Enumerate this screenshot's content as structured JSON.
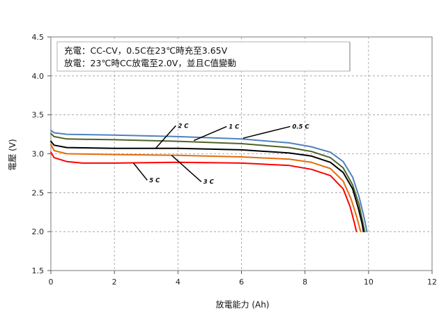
{
  "chart_data": {
    "type": "line",
    "xlabel": "放電能力 (Ah)",
    "ylabel": "電壓 (V)",
    "xlim": [
      0,
      12
    ],
    "ylim": [
      1.5,
      4.5
    ],
    "x_ticks": [
      "0",
      "2",
      "4",
      "6",
      "8",
      "10",
      "12"
    ],
    "y_ticks": [
      "1.5",
      "2.0",
      "2.5",
      "3.0",
      "3.5",
      "4.0",
      "4.5"
    ],
    "grid": true,
    "annotation": {
      "line1": "充電：CC-CV，0.5C在23℃時充至3.65V",
      "line2": "放電：23℃時CC放電至2.0V，並且C值變動"
    },
    "series": [
      {
        "name": "0.5 C",
        "color": "#4f81bd",
        "points": [
          [
            0,
            3.3
          ],
          [
            0.1,
            3.27
          ],
          [
            0.5,
            3.25
          ],
          [
            2,
            3.24
          ],
          [
            4,
            3.22
          ],
          [
            6,
            3.19
          ],
          [
            7.5,
            3.14
          ],
          [
            8.2,
            3.09
          ],
          [
            8.8,
            3.02
          ],
          [
            9.2,
            2.9
          ],
          [
            9.5,
            2.7
          ],
          [
            9.7,
            2.45
          ],
          [
            9.85,
            2.2
          ],
          [
            9.95,
            2.0
          ]
        ]
      },
      {
        "name": "1 C",
        "color": "#4f6228",
        "points": [
          [
            0,
            3.26
          ],
          [
            0.1,
            3.22
          ],
          [
            0.5,
            3.19
          ],
          [
            2,
            3.18
          ],
          [
            4,
            3.16
          ],
          [
            6,
            3.13
          ],
          [
            7.5,
            3.08
          ],
          [
            8.2,
            3.03
          ],
          [
            8.8,
            2.95
          ],
          [
            9.2,
            2.82
          ],
          [
            9.5,
            2.6
          ],
          [
            9.7,
            2.35
          ],
          [
            9.82,
            2.12
          ],
          [
            9.88,
            2.0
          ]
        ]
      },
      {
        "name": "2 C",
        "color": "#000000",
        "points": [
          [
            0,
            3.16
          ],
          [
            0.1,
            3.11
          ],
          [
            0.5,
            3.08
          ],
          [
            2,
            3.07
          ],
          [
            4,
            3.07
          ],
          [
            6,
            3.05
          ],
          [
            7.5,
            3.01
          ],
          [
            8.2,
            2.97
          ],
          [
            8.8,
            2.89
          ],
          [
            9.2,
            2.76
          ],
          [
            9.5,
            2.55
          ],
          [
            9.68,
            2.3
          ],
          [
            9.8,
            2.1
          ],
          [
            9.84,
            2.0
          ]
        ]
      },
      {
        "name": "3 C",
        "color": "#e46c0a",
        "points": [
          [
            0,
            3.12
          ],
          [
            0.1,
            3.04
          ],
          [
            0.5,
            3.0
          ],
          [
            2,
            2.99
          ],
          [
            4,
            2.98
          ],
          [
            6,
            2.96
          ],
          [
            7.5,
            2.93
          ],
          [
            8.2,
            2.89
          ],
          [
            8.8,
            2.81
          ],
          [
            9.2,
            2.65
          ],
          [
            9.45,
            2.42
          ],
          [
            9.62,
            2.2
          ],
          [
            9.72,
            2.05
          ],
          [
            9.75,
            2.0
          ]
        ]
      },
      {
        "name": "5 C",
        "color": "#ff0000",
        "points": [
          [
            0,
            3.02
          ],
          [
            0.1,
            2.95
          ],
          [
            0.5,
            2.9
          ],
          [
            1,
            2.88
          ],
          [
            2,
            2.88
          ],
          [
            4,
            2.89
          ],
          [
            6,
            2.88
          ],
          [
            7.5,
            2.85
          ],
          [
            8.2,
            2.8
          ],
          [
            8.8,
            2.72
          ],
          [
            9.2,
            2.55
          ],
          [
            9.42,
            2.32
          ],
          [
            9.55,
            2.12
          ],
          [
            9.62,
            2.0
          ]
        ]
      }
    ],
    "labels": [
      {
        "text": "0.5 C",
        "series": "0.5 C",
        "at": [
          7.6,
          3.35
        ],
        "target": [
          6.05,
          3.2
        ]
      },
      {
        "text": "1 C",
        "series": "1 C",
        "at": [
          5.6,
          3.35
        ],
        "target": [
          4.5,
          3.17
        ]
      },
      {
        "text": "2 C",
        "series": "2 C",
        "at": [
          4.0,
          3.36
        ],
        "target": [
          3.3,
          3.07
        ]
      },
      {
        "text": "3 C",
        "series": "3 C",
        "at": [
          4.8,
          2.64
        ],
        "target": [
          3.8,
          2.98
        ]
      },
      {
        "text": "5 C",
        "series": "5 C",
        "at": [
          3.1,
          2.66
        ],
        "target": [
          2.6,
          2.88
        ]
      }
    ]
  }
}
